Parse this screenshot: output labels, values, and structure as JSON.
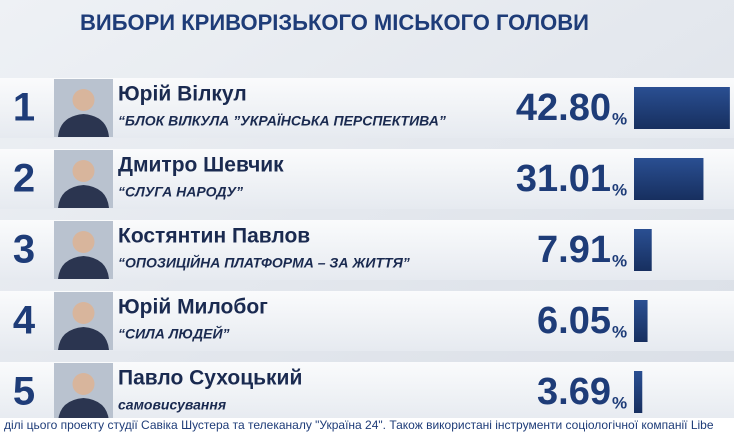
{
  "chart_data": {
    "type": "bar",
    "title": "ВИБОРИ КРИВОРІЗЬКОГО МІСЬКОГО ГОЛОВИ",
    "ranks": [
      "1",
      "2",
      "3",
      "4",
      "5"
    ],
    "categories": [
      "Юрій Вілкул",
      "Дмитро Шевчик",
      "Костянтин Павлов",
      "Юрій Милобог",
      "Павло Сухоцький"
    ],
    "parties": [
      "“БЛОК ВІЛКУЛА ”УКРАЇНСЬКА ПЕРСПЕКТИВА”",
      "“СЛУГА НАРОДУ”",
      "“ОПОЗИЦІЙНА ПЛАТФОРМА – ЗА ЖИТТЯ”",
      "“СИЛА ЛЮДЕЙ”",
      "самовисування"
    ],
    "values": [
      42.8,
      31.01,
      7.91,
      6.05,
      3.69
    ],
    "value_labels": [
      "42.80",
      "31.01",
      "7.91",
      "6.05",
      "3.69"
    ],
    "unit": "%",
    "color": "#1e3c78",
    "footer": "ділі цього проекту студії Савіка Шустера та телеканалу \"Україна 24\". Також використані інструменти соціологічної компанії Libe"
  }
}
